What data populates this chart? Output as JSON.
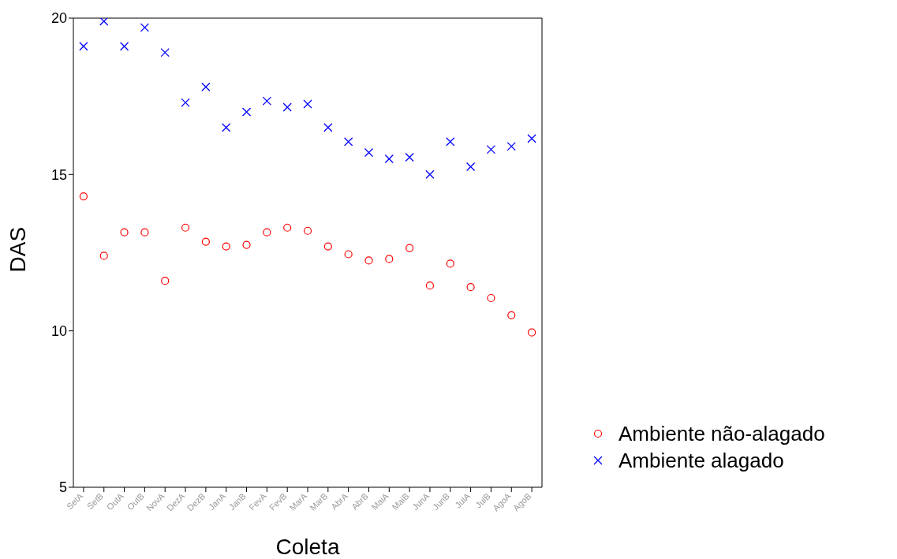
{
  "chart_data": {
    "type": "scatter",
    "xlabel": "Coleta",
    "ylabel": "DAS",
    "categories": [
      "SetA",
      "SetB",
      "OutA",
      "OutB",
      "NovA",
      "DezA",
      "DezB",
      "JanA",
      "JanB",
      "FevA",
      "FevB",
      "MarA",
      "MarB",
      "AbrA",
      "AbrB",
      "MaiA",
      "MaiB",
      "JunA",
      "JunB",
      "JulA",
      "JulB",
      "AgoA",
      "AgoB"
    ],
    "series": [
      {
        "name": "Ambiente não-alagado",
        "color": "#ff0000",
        "marker": "circle",
        "values": [
          14.3,
          12.4,
          13.15,
          13.15,
          11.6,
          13.3,
          12.85,
          12.7,
          12.75,
          13.15,
          13.3,
          13.2,
          12.7,
          12.45,
          12.25,
          12.3,
          12.65,
          11.45,
          12.15,
          11.4,
          11.05,
          10.5,
          9.95
        ]
      },
      {
        "name": "Ambiente alagado",
        "color": "#0000ff",
        "marker": "cross",
        "values": [
          19.1,
          19.9,
          19.1,
          19.7,
          18.9,
          17.3,
          17.8,
          16.5,
          17.0,
          17.35,
          17.15,
          17.25,
          16.5,
          16.05,
          15.7,
          15.5,
          15.55,
          15.0,
          16.05,
          15.25,
          15.8,
          15.9,
          16.15
        ]
      }
    ],
    "ylim": [
      5,
      20
    ],
    "yticks": [
      5,
      10,
      15,
      20
    ],
    "legend": "bottom right"
  }
}
